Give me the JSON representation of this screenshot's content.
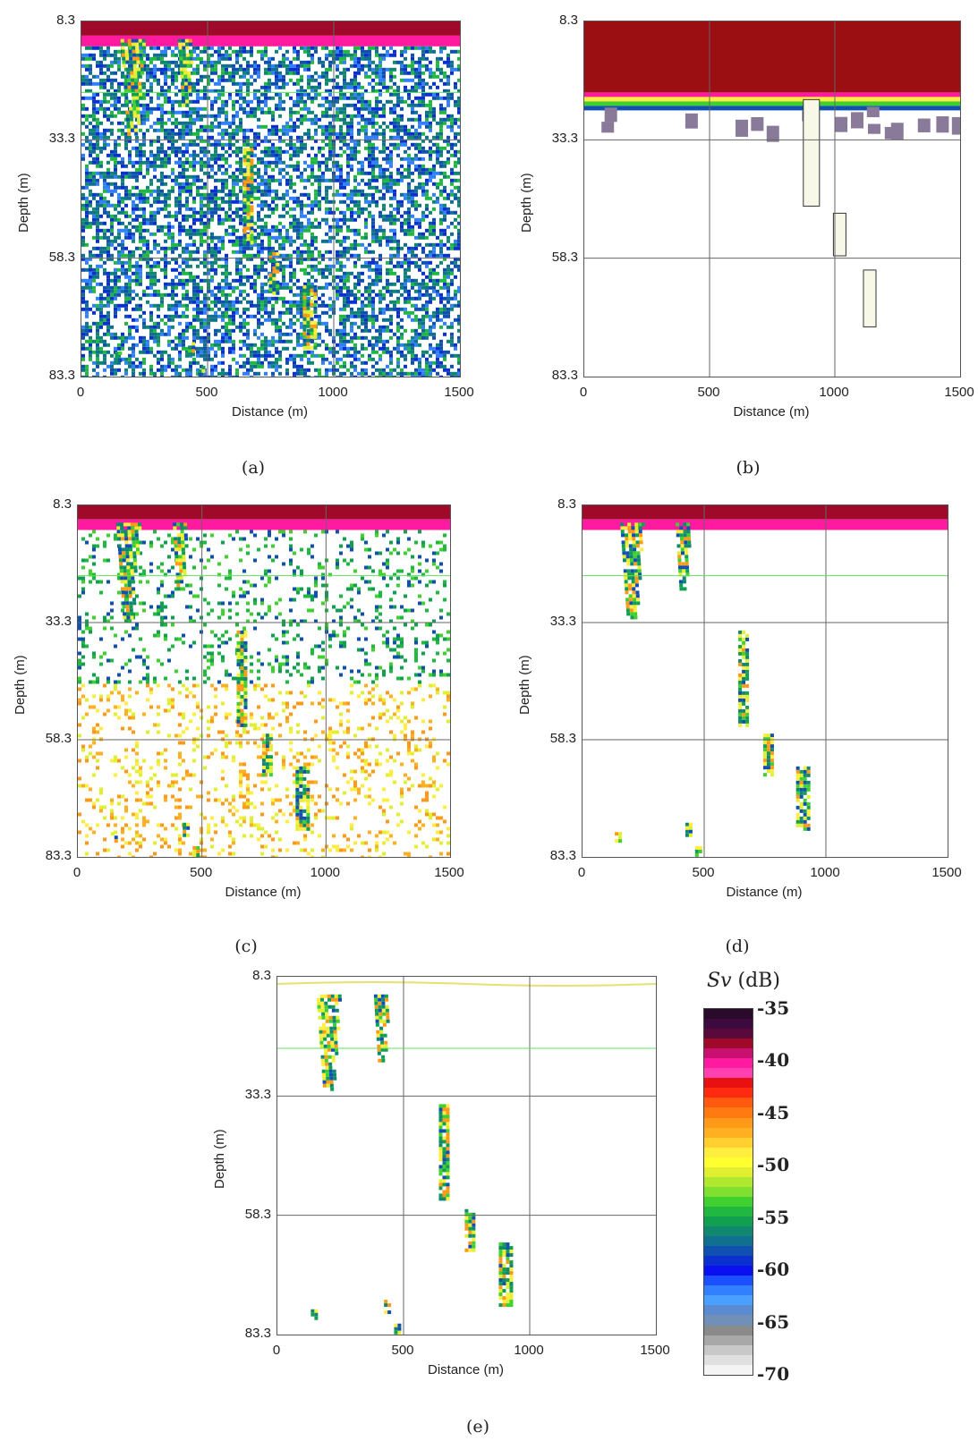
{
  "axes": {
    "ylabel": "Depth (m)",
    "xlabel": "Distance (m)",
    "yticks": [
      "8.3",
      "33.3",
      "58.3",
      "83.3"
    ],
    "xticks": [
      "0",
      "500",
      "1000",
      "1500"
    ]
  },
  "panels": [
    {
      "caption": "(a)"
    },
    {
      "caption": "(b)"
    },
    {
      "caption": "(c)"
    },
    {
      "caption": "(d)"
    },
    {
      "caption": "(e)"
    }
  ],
  "colorbar": {
    "symbol": "Sv",
    "unit": " (dB)",
    "labels": [
      "-35",
      "-40",
      "-45",
      "-50",
      "-55",
      "-60",
      "-65",
      "-70"
    ],
    "colors": [
      "#2a0a2a",
      "#3d0a3d",
      "#5a0a3a",
      "#a00a2a",
      "#c8106e",
      "#ff1aa0",
      "#ff40b0",
      "#e81010",
      "#ff2a10",
      "#ff5a10",
      "#ff7a10",
      "#ff9a18",
      "#ffb020",
      "#ffd030",
      "#ffee40",
      "#ffff30",
      "#e0f030",
      "#b0e830",
      "#80e030",
      "#40d030",
      "#20b840",
      "#10a050",
      "#108870",
      "#107090",
      "#1050b0",
      "#0a30d0",
      "#0a10f0",
      "#1a50ff",
      "#3080ff",
      "#4aa0ff",
      "#5a8ad0",
      "#7090b8",
      "#8a8a8a",
      "#a8a8a8",
      "#c8c8c8",
      "#e0e0e0",
      "#f4f4f4"
    ]
  },
  "chart_data": [
    {
      "type": "heatmap",
      "title": "(a)",
      "xlabel": "Distance (m)",
      "ylabel": "Depth (m)",
      "xlim": [
        0,
        1500
      ],
      "ylim": [
        8.3,
        83.3
      ],
      "xticks": [
        0,
        500,
        1000,
        1500
      ],
      "yticks": [
        8.3,
        33.3,
        58.3,
        83.3
      ],
      "colorbar": "Sv (dB) from -70 to -35"
    },
    {
      "type": "heatmap",
      "title": "(b)",
      "xlabel": "Distance (m)",
      "ylabel": "Depth (m)",
      "xlim": [
        0,
        1500
      ],
      "ylim": [
        8.3,
        83.3
      ],
      "xticks": [
        0,
        500,
        1000,
        1500
      ],
      "yticks": [
        8.3,
        33.3,
        58.3,
        83.3
      ]
    },
    {
      "type": "heatmap",
      "title": "(c)",
      "xlabel": "Distance (m)",
      "ylabel": "Depth (m)",
      "xlim": [
        0,
        1500
      ],
      "ylim": [
        8.3,
        83.3
      ],
      "xticks": [
        0,
        500,
        1000,
        1500
      ],
      "yticks": [
        8.3,
        33.3,
        58.3,
        83.3
      ]
    },
    {
      "type": "heatmap",
      "title": "(d)",
      "xlabel": "Distance (m)",
      "ylabel": "Depth (m)",
      "xlim": [
        0,
        1500
      ],
      "ylim": [
        8.3,
        83.3
      ],
      "xticks": [
        0,
        500,
        1000,
        1500
      ],
      "yticks": [
        8.3,
        33.3,
        58.3,
        83.3
      ]
    },
    {
      "type": "heatmap",
      "title": "(e)",
      "xlabel": "Distance (m)",
      "ylabel": "Depth (m)",
      "xlim": [
        0,
        1500
      ],
      "ylim": [
        8.3,
        83.3
      ],
      "xticks": [
        0,
        500,
        1000,
        1500
      ],
      "yticks": [
        8.3,
        33.3,
        58.3,
        83.3
      ]
    }
  ]
}
